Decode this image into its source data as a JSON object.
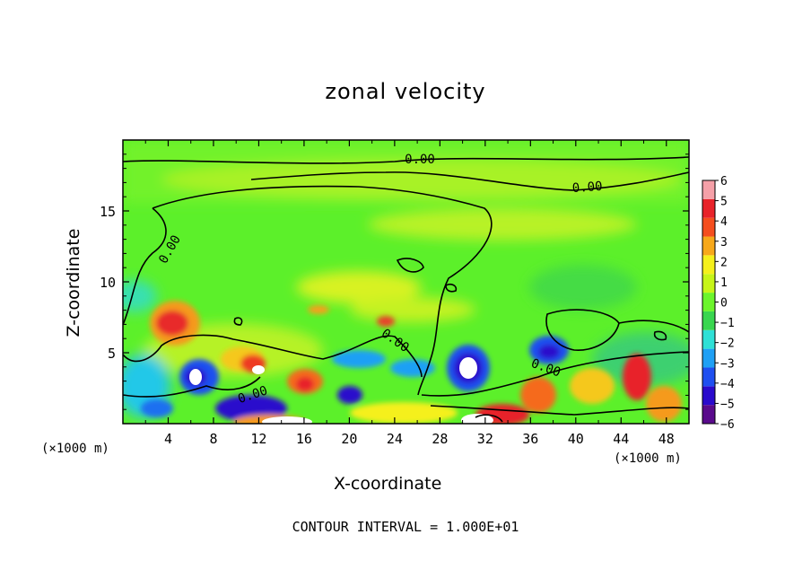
{
  "chart_data": {
    "type": "heatmap",
    "title": "zonal velocity",
    "xlabel": "X-coordinate",
    "ylabel": "Z-coordinate",
    "x_unit_label": "(×1000 m)",
    "xlim": [
      0,
      50
    ],
    "ylim": [
      0,
      20
    ],
    "x_ticks": [
      4,
      8,
      12,
      16,
      20,
      24,
      28,
      32,
      36,
      40,
      44,
      48
    ],
    "y_ticks": [
      5,
      10,
      15
    ],
    "colorbar": {
      "ticks": [
        6,
        5,
        4,
        3,
        2,
        1,
        0,
        -1,
        -2,
        -3,
        -4,
        -5,
        -6
      ],
      "range": [
        -6,
        6
      ],
      "bands": [
        "#5a0a8c",
        "#2a0acc",
        "#1f4ff0",
        "#1fa0f5",
        "#2fe0d6",
        "#39d64f",
        "#6cf52c",
        "#c7f518",
        "#f5f01c",
        "#f7a81a",
        "#f54e1e",
        "#e8232a",
        "#f5a0a8"
      ]
    },
    "contour_labels": [
      {
        "text": "0.00"
      },
      {
        "text": "0.00"
      },
      {
        "text": "0.00"
      },
      {
        "text": "0.00"
      },
      {
        "text": "0.00"
      },
      {
        "text": "0.00"
      }
    ],
    "contour_interval_text": "CONTOUR INTERVAL = 1.000E+01"
  }
}
